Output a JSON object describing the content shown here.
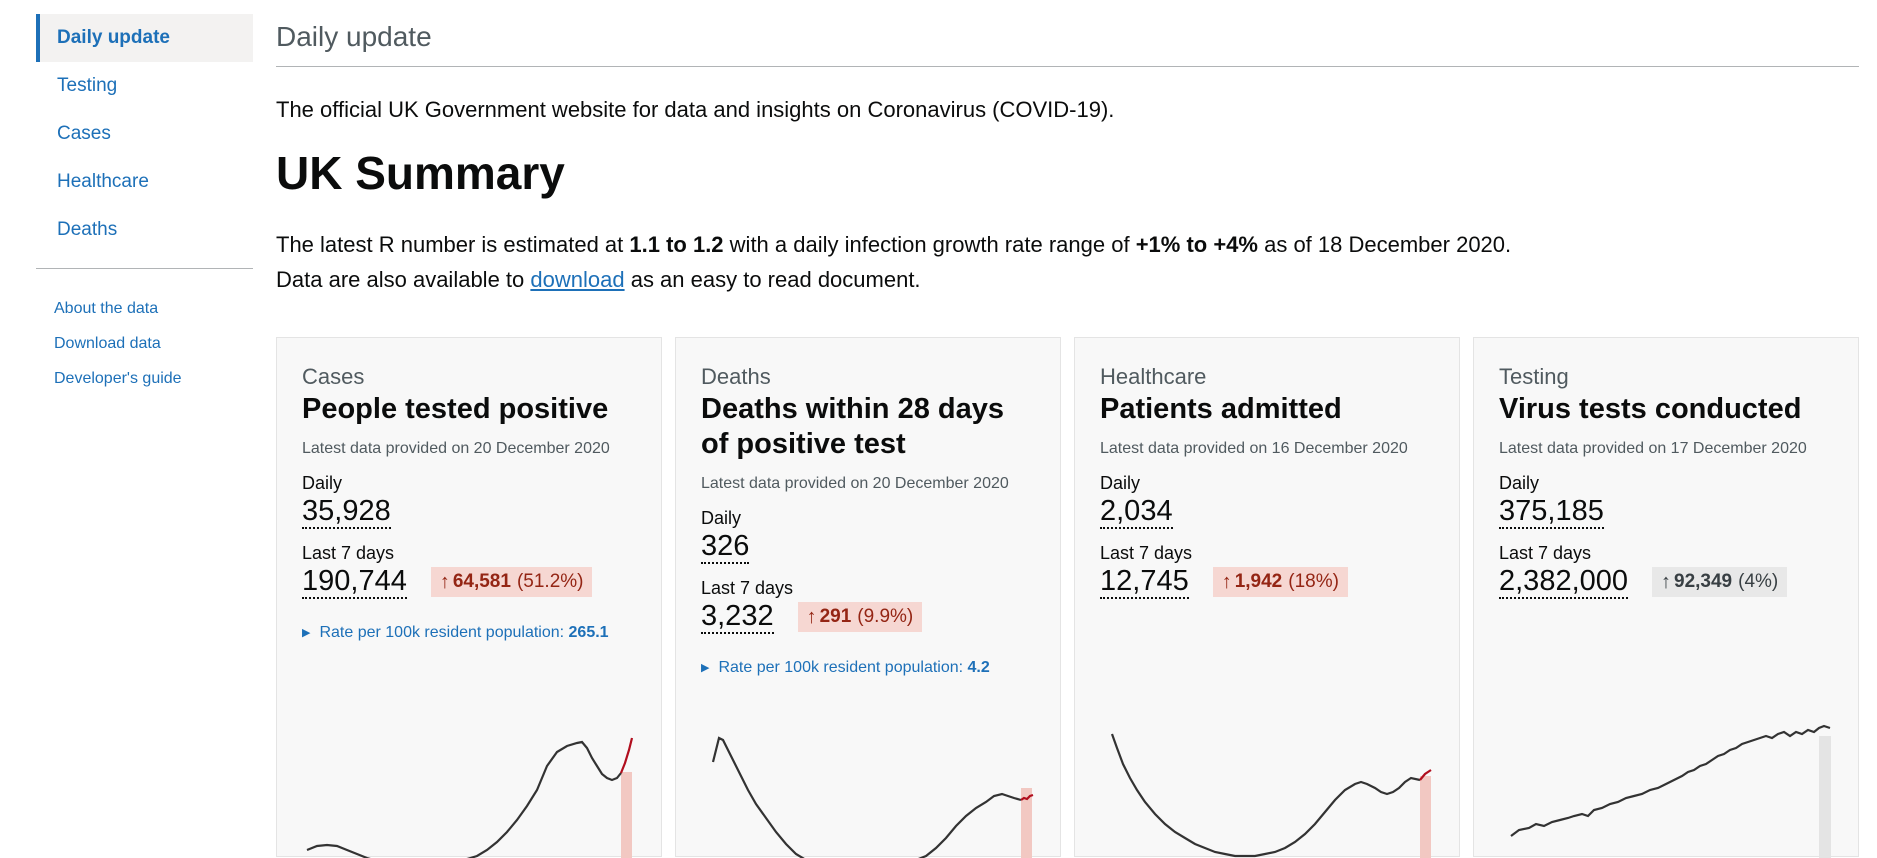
{
  "sidebar": {
    "items": [
      {
        "label": "Daily update"
      },
      {
        "label": "Testing"
      },
      {
        "label": "Cases"
      },
      {
        "label": "Healthcare"
      },
      {
        "label": "Deaths"
      }
    ],
    "links": [
      {
        "label": "About the data"
      },
      {
        "label": "Download data"
      },
      {
        "label": "Developer's guide"
      }
    ]
  },
  "header": {
    "title": "Daily update"
  },
  "intro": "The official UK Government website for data and insights on Coronavirus (COVID-19).",
  "summary": {
    "heading": "UK Summary",
    "r_prefix": "The latest R number is estimated at",
    "r_value": "1.1 to 1.2",
    "r_mid": "with a daily infection growth rate range of",
    "growth_value": "+1% to +4%",
    "r_suffix": "as of 18 December 2020.",
    "download_prefix": "Data are also available to",
    "download_link": "download",
    "download_suffix": "as an easy to read document."
  },
  "cards": [
    {
      "category": "Cases",
      "title": "People tested positive",
      "date": "Latest data provided on 20 December 2020",
      "daily_label": "Daily",
      "daily_value": "35,928",
      "week_label": "Last 7 days",
      "week_value": "190,744",
      "change_arrow": "↑",
      "change_value": "64,581",
      "change_pct": "(51.2%)",
      "rate_label": "Rate per 100k resident population:",
      "rate_value": "265.1"
    },
    {
      "category": "Deaths",
      "title": "Deaths within 28 days of positive test",
      "date": "Latest data provided on 20 December 2020",
      "daily_label": "Daily",
      "daily_value": "326",
      "week_label": "Last 7 days",
      "week_value": "3,232",
      "change_arrow": "↑",
      "change_value": "291",
      "change_pct": "(9.9%)",
      "rate_label": "Rate per 100k resident population:",
      "rate_value": "4.2"
    },
    {
      "category": "Healthcare",
      "title": "Patients admitted",
      "date": "Latest data provided on 16 December 2020",
      "daily_label": "Daily",
      "daily_value": "2,034",
      "week_label": "Last 7 days",
      "week_value": "12,745",
      "change_arrow": "↑",
      "change_value": "1,942",
      "change_pct": "(18%)"
    },
    {
      "category": "Testing",
      "title": "Virus tests conducted",
      "date": "Latest data provided on 17 December 2020",
      "daily_label": "Daily",
      "daily_value": "375,185",
      "week_label": "Last 7 days",
      "week_value": "2,382,000",
      "change_arrow": "↑",
      "change_value": "92,349",
      "change_pct": "(4%)"
    }
  ],
  "colors": {
    "link": "#1d70b8",
    "increase_bg": "#f6d7d2",
    "increase_text": "#942514",
    "neutral_bg": "#e8e8e8",
    "sparkline": "#333333",
    "recent_line": "#b10e1e",
    "recent_band": "#f2c8c2"
  },
  "icons": {
    "arrow": "arrow-up-icon",
    "expand": "triangle-right-icon"
  }
}
